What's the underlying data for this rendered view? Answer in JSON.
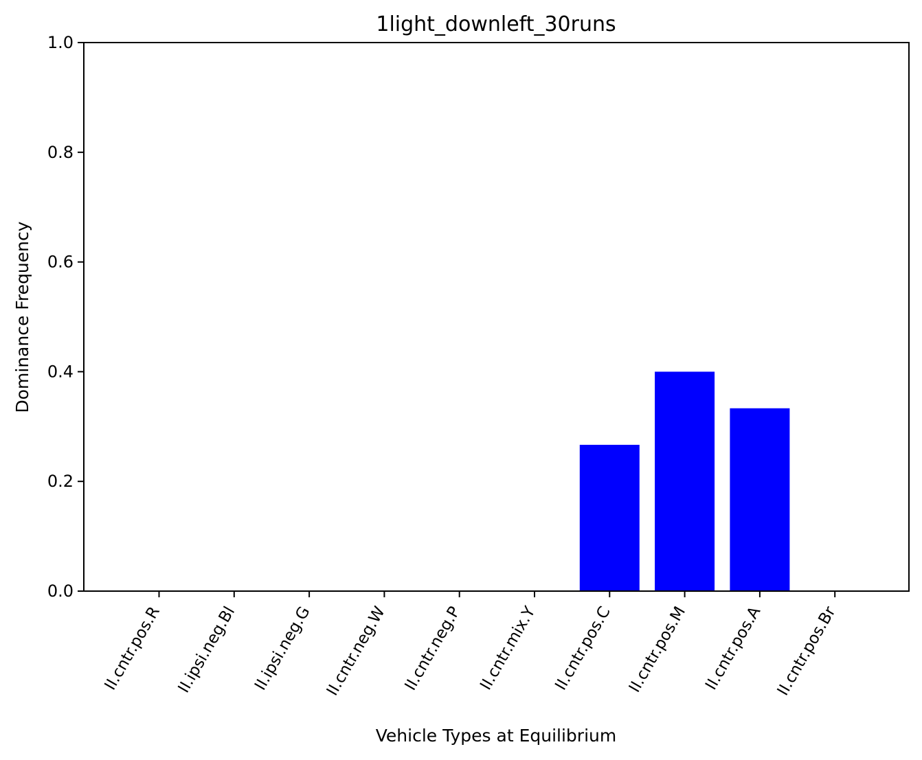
{
  "chart_data": {
    "type": "bar",
    "title": "1light_downleft_30runs",
    "xlabel": "Vehicle Types at Equilibrium",
    "ylabel": "Dominance Frequency",
    "categories": [
      "II.cntr.pos.R",
      "II.ipsi.neg.Bl",
      "II.ipsi.neg.G",
      "II.cntr.neg.W",
      "II.cntr.neg.P",
      "II.cntr.mix.Y",
      "II.cntr.pos.C",
      "II.cntr.pos.M",
      "II.cntr.pos.A",
      "II.cntr.pos.Br"
    ],
    "values": [
      0,
      0,
      0,
      0,
      0,
      0,
      0.2667,
      0.4,
      0.3333,
      0
    ],
    "ylim": [
      0,
      1.0
    ],
    "yticks": [
      "0.0",
      "0.2",
      "0.4",
      "0.6",
      "0.8",
      "1.0"
    ],
    "bar_color": "#0000ff",
    "grid": false,
    "legend": "none"
  }
}
